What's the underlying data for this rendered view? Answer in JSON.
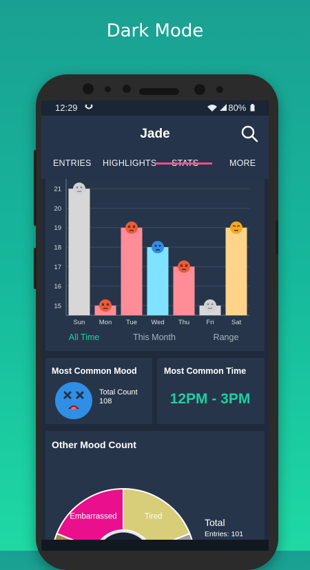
{
  "headline": "Dark Mode",
  "status": {
    "time": "12:29",
    "battery": "80%"
  },
  "app": {
    "title": "Jade"
  },
  "tabs": [
    "ENTRIES",
    "HIGHLIGHTS",
    "STATS",
    "MORE"
  ],
  "active_tab": "STATS",
  "chart_data": {
    "type": "bar",
    "categories": [
      "Sun",
      "Mon",
      "Tue",
      "Wed",
      "Thu",
      "Fri",
      "Sat"
    ],
    "values": [
      21,
      15,
      19,
      18,
      17,
      15,
      19
    ],
    "ylim": [
      14.5,
      21.5
    ],
    "yticks": [
      15,
      16,
      17,
      18,
      19,
      20,
      21
    ],
    "bar_colors": [
      "#d7d7d7",
      "#ff8d98",
      "#ff8d98",
      "#7fe2ff",
      "#ff8d98",
      "#d7d7d7",
      "#ffd38a"
    ],
    "mood_faces": [
      "neutral",
      "angry",
      "angry",
      "sad",
      "angry",
      "neutral",
      "annoyed"
    ],
    "face_colors": [
      "#cfd2d5",
      "#f15a36",
      "#f15a36",
      "#2f8fe6",
      "#f15a36",
      "#cfd2d5",
      "#f6a81e"
    ],
    "grid": true
  },
  "range_filters": [
    "All Time",
    "This Month",
    "Range"
  ],
  "active_filter": "All Time",
  "most_common_mood": {
    "title": "Most Common Mood",
    "count_label": "Total Count",
    "count_value": "108",
    "face": "dizzy",
    "face_color": "#2f8fe6"
  },
  "most_common_time": {
    "title": "Most Common Time",
    "value": "12PM - 3PM"
  },
  "other_mood": {
    "title": "Other Mood Count",
    "slices": [
      {
        "label": "Embarrassed",
        "color": "#ea0f8d"
      },
      {
        "label": "Tired",
        "color": "#d8cd78"
      },
      {
        "label": "",
        "color": "#9e9e9e"
      },
      {
        "label": "",
        "color": "#a58548"
      }
    ],
    "total_label": "Total",
    "entries_label": "Entries: 101"
  },
  "colors": {
    "accent": "#1fcfa2",
    "tab_indicator": "#ec4f8d",
    "card": "#26354a",
    "app_bar": "#25344a"
  }
}
